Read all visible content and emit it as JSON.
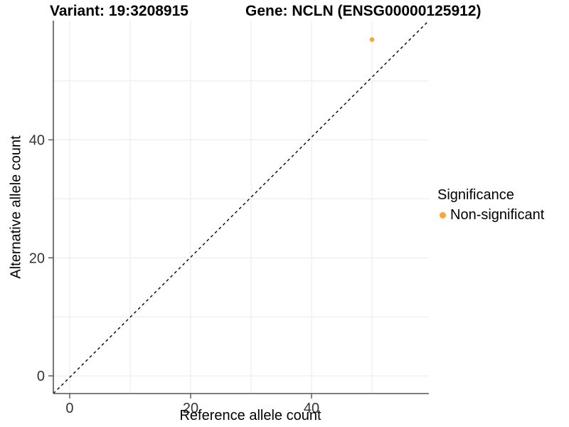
{
  "chart_data": {
    "type": "scatter",
    "title_variant": "Variant: 19:3208915",
    "title_gene": "Gene: NCLN (ENSG00000125912)",
    "xlabel": "Reference allele count",
    "ylabel": "Alternative allele count",
    "xlim": [
      -2.7,
      59.4
    ],
    "ylim": [
      -3.0,
      60.2
    ],
    "x_ticks": [
      0,
      20,
      40
    ],
    "y_ticks": [
      0,
      20,
      40
    ],
    "gridlines": {
      "x": [
        0,
        10,
        20,
        30,
        40,
        50
      ],
      "y": [
        0,
        10,
        20,
        30,
        40,
        50
      ],
      "color": "#EAEAEA"
    },
    "identity_line": {
      "style": "dashed",
      "color": "#000000"
    },
    "series": [
      {
        "name": "Non-significant",
        "color": "#F9A43C",
        "points": [
          {
            "x": 50,
            "y": 57
          }
        ]
      }
    ],
    "legend": {
      "title": "Significance",
      "position": "right",
      "entries": [
        {
          "label": "Non-significant",
          "color": "#F9A43C"
        }
      ]
    },
    "axis_color": "#555555",
    "tick_label_color": "#333333"
  }
}
